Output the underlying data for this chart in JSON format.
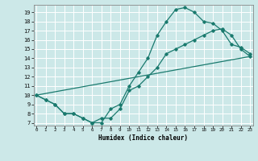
{
  "xlabel": "Humidex (Indice chaleur)",
  "bg_color": "#cce8e8",
  "grid_color": "#ffffff",
  "line_color": "#1a7a6e",
  "xlim": [
    0,
    23
  ],
  "ylim": [
    7,
    19.5
  ],
  "xticks": [
    0,
    1,
    2,
    3,
    4,
    5,
    6,
    7,
    8,
    9,
    10,
    11,
    12,
    13,
    14,
    15,
    16,
    17,
    18,
    19,
    20,
    21,
    22,
    23
  ],
  "yticks": [
    7,
    8,
    9,
    10,
    11,
    12,
    13,
    14,
    15,
    16,
    17,
    18,
    19
  ],
  "line1_x": [
    0,
    1,
    2,
    3,
    4,
    5,
    6,
    7,
    8,
    9,
    10,
    11,
    12,
    13,
    14,
    15,
    16,
    17,
    18,
    19,
    20,
    21,
    22,
    23
  ],
  "line1_y": [
    10,
    9.5,
    9,
    8,
    8,
    7.5,
    7,
    7,
    8.5,
    9,
    11,
    12.5,
    14,
    16.5,
    18,
    19.3,
    19.5,
    19,
    18,
    17.8,
    17,
    15.5,
    15.2,
    14.5
  ],
  "line2_x": [
    0,
    1,
    2,
    3,
    4,
    5,
    6,
    7,
    8,
    9,
    10,
    11,
    12,
    13,
    14,
    15,
    16,
    17,
    18,
    19,
    20,
    21,
    22,
    23
  ],
  "line2_y": [
    10,
    9.5,
    9,
    8,
    8,
    7.5,
    7,
    7.5,
    7.5,
    8.5,
    10.5,
    11,
    12,
    13,
    14.5,
    15,
    15.5,
    16,
    16.5,
    17,
    17.2,
    16.5,
    15,
    14.2
  ],
  "line3_x": [
    0,
    23
  ],
  "line3_y": [
    10,
    14.2
  ]
}
